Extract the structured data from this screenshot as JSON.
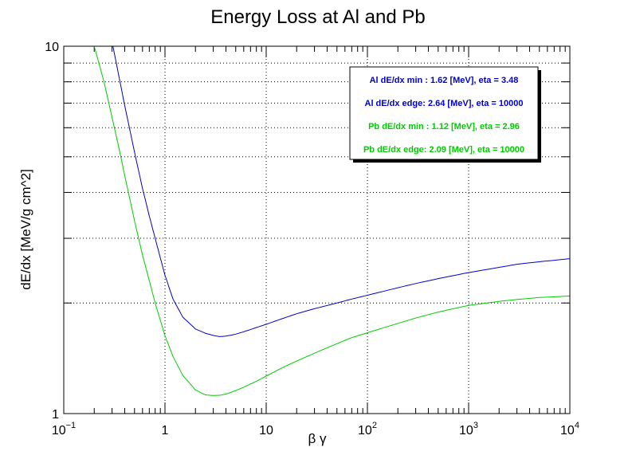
{
  "chart_data": {
    "type": "line",
    "title": "Energy Loss at Al and Pb",
    "xlabel": "β γ",
    "ylabel": "dE/dx [MeV/g cm^2]",
    "xscale": "log",
    "yscale": "log",
    "xlim": [
      0.1,
      10000
    ],
    "ylim": [
      1,
      10
    ],
    "grid": true,
    "x_ticks": [
      {
        "base": "10",
        "exp": "−1"
      },
      {
        "base": "1",
        "exp": ""
      },
      {
        "base": "10",
        "exp": ""
      },
      {
        "base": "10",
        "exp": "2"
      },
      {
        "base": "10",
        "exp": "3"
      },
      {
        "base": "10",
        "exp": "4"
      }
    ],
    "y_ticks": [
      "1",
      "10"
    ],
    "series": [
      {
        "key": "al",
        "color": "#0000cc",
        "x": [
          0.3,
          0.35,
          0.4,
          0.5,
          0.6,
          0.7,
          0.8,
          1,
          1.2,
          1.5,
          2,
          2.5,
          3,
          3.48,
          4,
          5,
          6,
          8,
          10,
          15,
          20,
          30,
          50,
          70,
          100,
          200,
          300,
          500,
          1000,
          2000,
          3000,
          5000,
          10000
        ],
        "y": [
          10.3,
          8.3,
          6.9,
          5.15,
          4.1,
          3.45,
          3.0,
          2.38,
          2.05,
          1.83,
          1.7,
          1.655,
          1.632,
          1.62,
          1.625,
          1.645,
          1.67,
          1.715,
          1.75,
          1.82,
          1.87,
          1.93,
          2.0,
          2.05,
          2.1,
          2.2,
          2.26,
          2.33,
          2.42,
          2.5,
          2.55,
          2.59,
          2.64
        ]
      },
      {
        "key": "pb",
        "color": "#00cc00",
        "x": [
          0.2,
          0.25,
          0.3,
          0.35,
          0.4,
          0.5,
          0.6,
          0.7,
          0.8,
          1,
          1.2,
          1.5,
          2,
          2.5,
          2.96,
          3.5,
          4,
          5,
          6,
          8,
          10,
          15,
          20,
          30,
          50,
          70,
          100,
          200,
          300,
          500,
          1000,
          2000,
          3000,
          5000,
          10000
        ],
        "y": [
          10.0,
          8.0,
          6.4,
          5.3,
          4.45,
          3.35,
          2.7,
          2.3,
          2.0,
          1.63,
          1.43,
          1.27,
          1.16,
          1.125,
          1.12,
          1.122,
          1.13,
          1.155,
          1.18,
          1.225,
          1.265,
          1.34,
          1.39,
          1.46,
          1.55,
          1.61,
          1.66,
          1.76,
          1.82,
          1.89,
          1.97,
          2.02,
          2.045,
          2.07,
          2.09
        ]
      }
    ],
    "legend": {
      "placement": "top-right",
      "entries": [
        {
          "text": "Al dE/dx min : 1.62 [MeV], eta = 3.48",
          "color": "#0000cc"
        },
        {
          "text": "Al dE/dx edge: 2.64 [MeV], eta = 10000",
          "color": "#0000cc"
        },
        {
          "text": "Pb dE/dx min : 1.12 [MeV], eta = 2.96",
          "color": "#00cc00"
        },
        {
          "text": "Pb dE/dx edge: 2.09 [MeV], eta = 10000",
          "color": "#00cc00"
        }
      ]
    }
  }
}
